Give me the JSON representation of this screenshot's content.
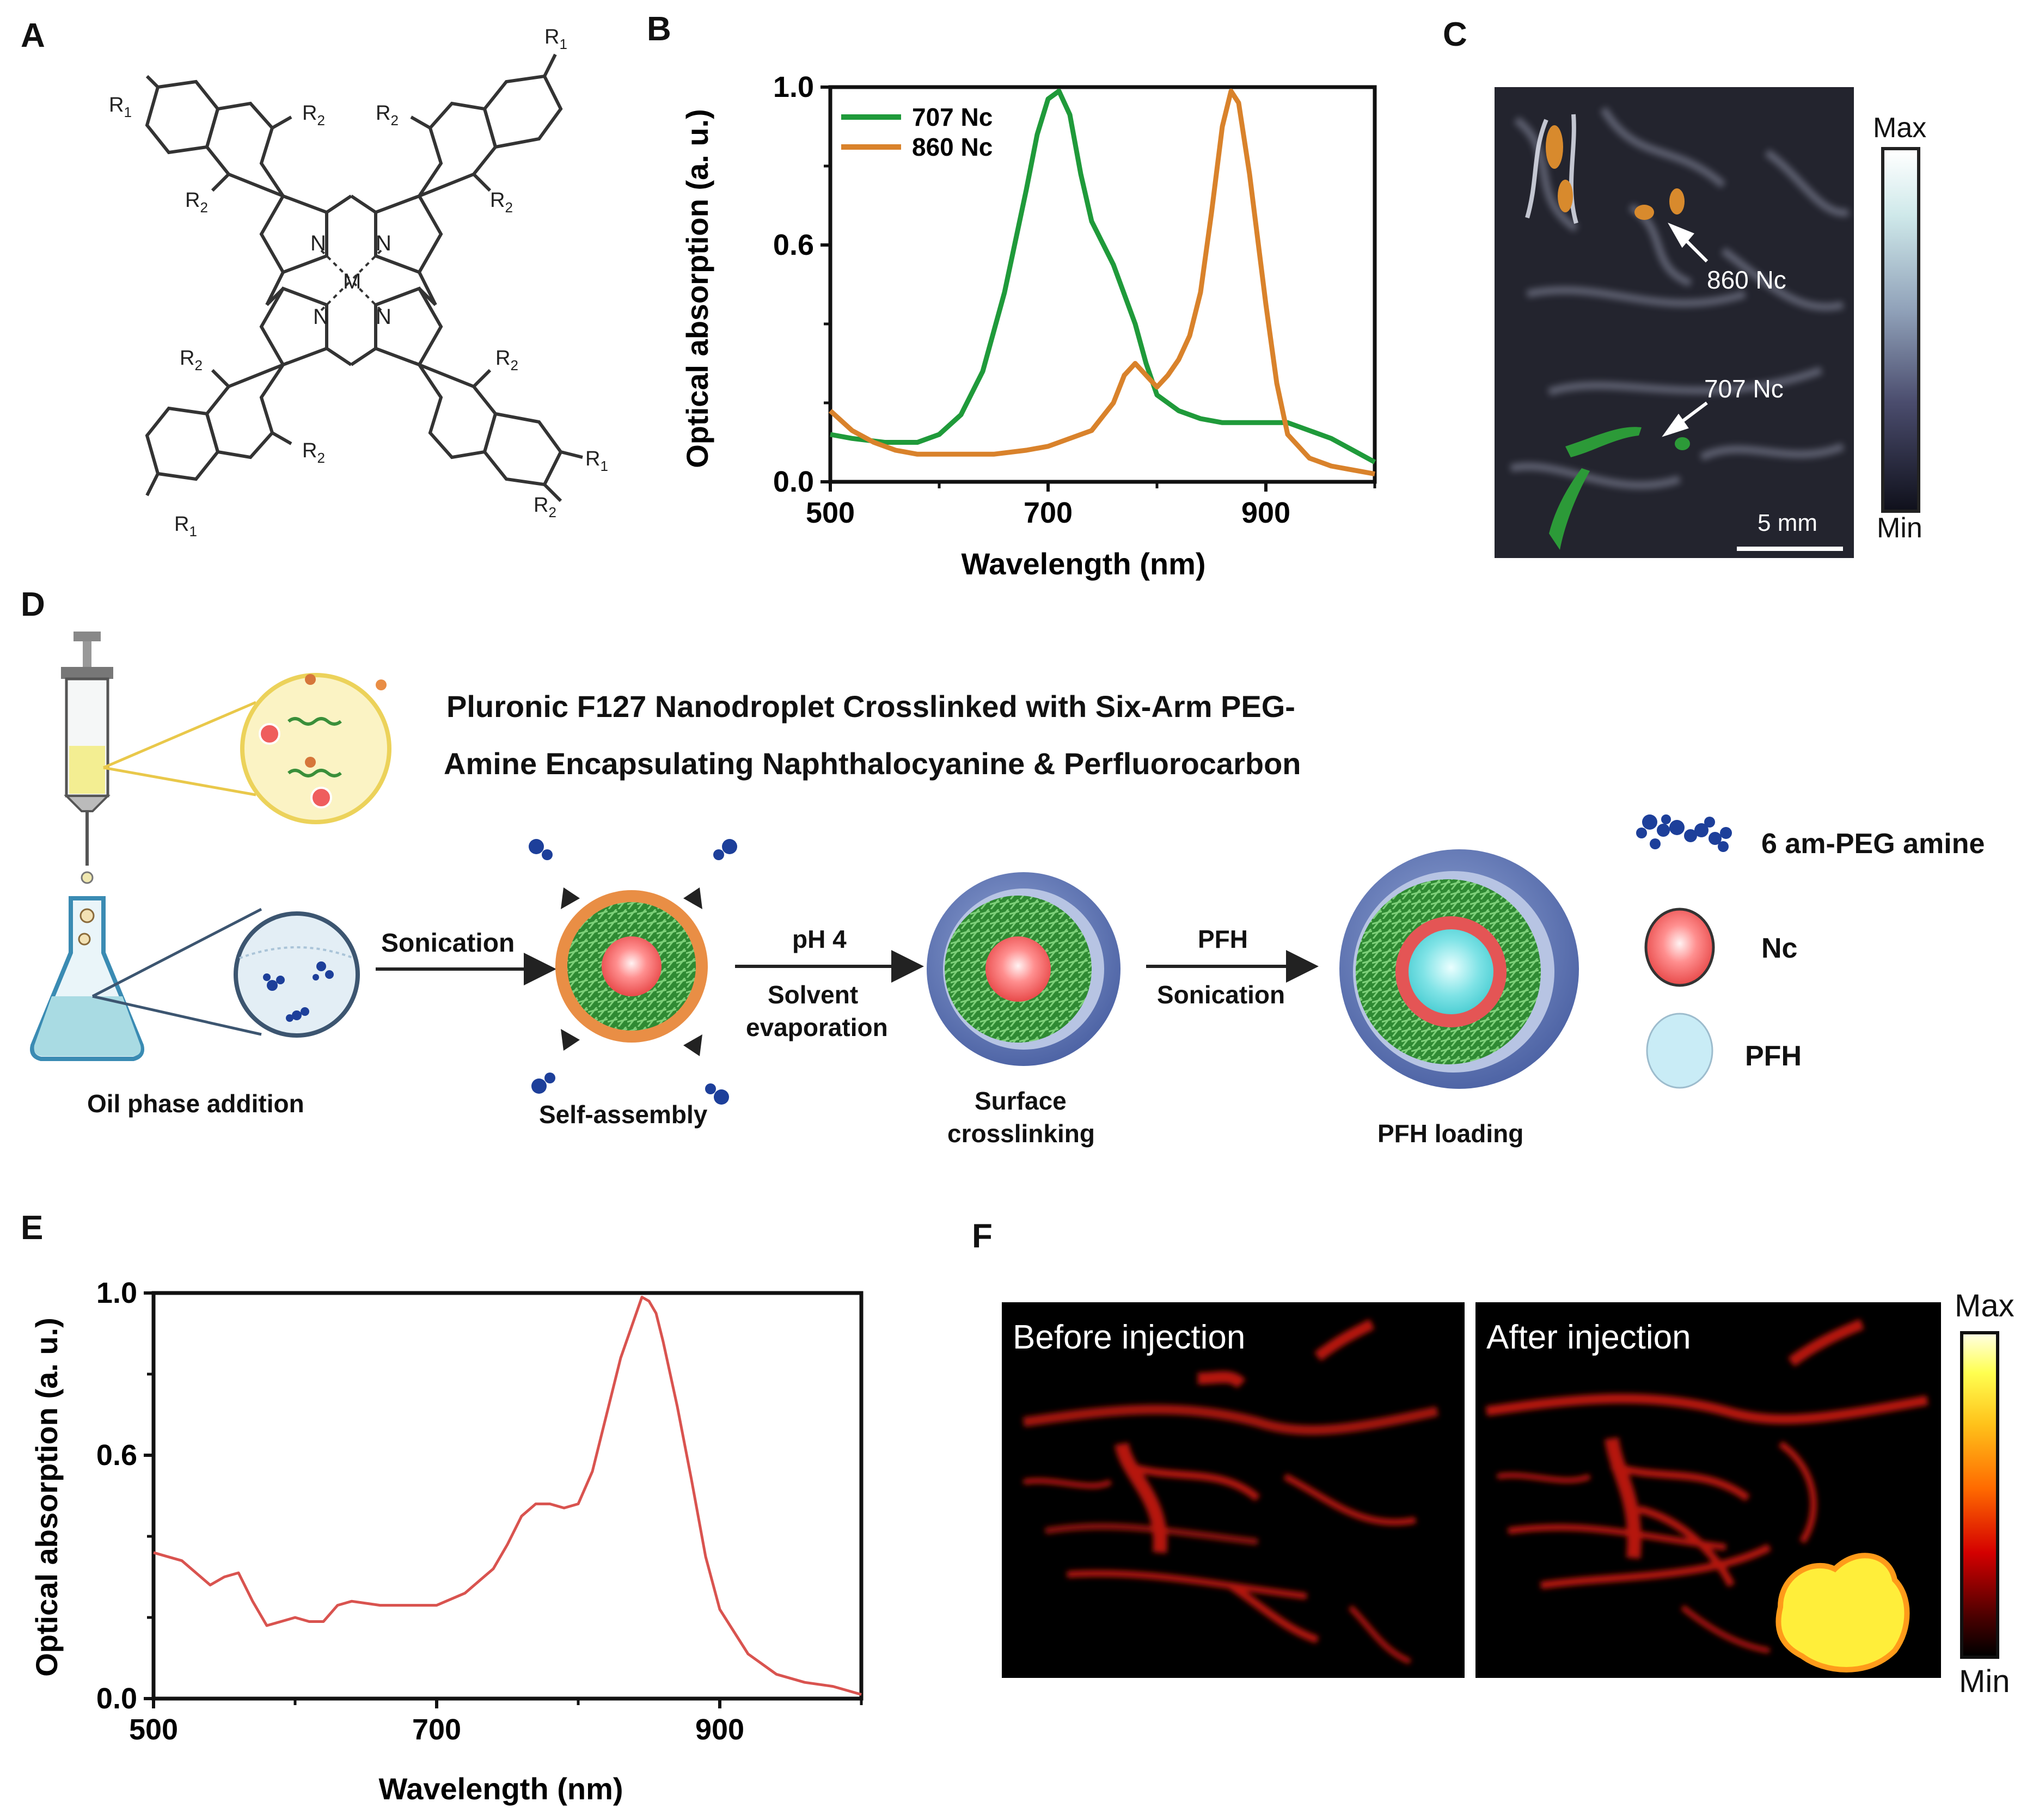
{
  "panels": {
    "A": "A",
    "B": "B",
    "C": "C",
    "D": "D",
    "E": "E",
    "F": "F"
  },
  "panelA": {
    "atoms": {
      "M": "M",
      "N": "N",
      "R1": "R",
      "R1_sub": "1",
      "R2": "R",
      "R2_sub": "2"
    }
  },
  "chart_data": [
    {
      "type": "line",
      "panel": "B",
      "xlabel": "Wavelength (nm)",
      "ylabel": "Optical absorption (a. u.)",
      "xlim": [
        500,
        1000
      ],
      "ylim": [
        0,
        1.0
      ],
      "xticks": [
        500,
        700,
        900
      ],
      "xticklabels": [
        "500",
        "700",
        "900"
      ],
      "yticks": [
        0.0,
        0.6,
        1.0
      ],
      "yticklabels": [
        "0.0",
        "0.6",
        "1.0"
      ],
      "legend": "top-left",
      "series": [
        {
          "name": "707 Nc",
          "color": "#1f9a3a",
          "x": [
            500,
            520,
            550,
            580,
            600,
            620,
            640,
            660,
            680,
            690,
            700,
            710,
            720,
            730,
            740,
            760,
            780,
            790,
            800,
            820,
            840,
            860,
            880,
            900,
            920,
            940,
            960,
            980,
            1000
          ],
          "y": [
            0.12,
            0.11,
            0.1,
            0.1,
            0.12,
            0.17,
            0.28,
            0.48,
            0.74,
            0.88,
            0.97,
            0.99,
            0.93,
            0.78,
            0.66,
            0.55,
            0.4,
            0.3,
            0.22,
            0.18,
            0.16,
            0.15,
            0.15,
            0.15,
            0.15,
            0.13,
            0.11,
            0.08,
            0.05
          ]
        },
        {
          "name": "860 Nc",
          "color": "#d9822b",
          "x": [
            500,
            520,
            540,
            560,
            580,
            600,
            620,
            650,
            680,
            700,
            720,
            740,
            760,
            770,
            780,
            790,
            800,
            810,
            820,
            830,
            840,
            850,
            860,
            868,
            875,
            885,
            900,
            910,
            920,
            940,
            960,
            980,
            1000
          ],
          "y": [
            0.18,
            0.13,
            0.1,
            0.08,
            0.07,
            0.07,
            0.07,
            0.07,
            0.08,
            0.09,
            0.11,
            0.13,
            0.2,
            0.27,
            0.3,
            0.27,
            0.24,
            0.27,
            0.31,
            0.37,
            0.48,
            0.68,
            0.9,
            0.99,
            0.96,
            0.78,
            0.45,
            0.25,
            0.12,
            0.06,
            0.04,
            0.03,
            0.02
          ]
        }
      ]
    },
    {
      "type": "line",
      "panel": "E",
      "xlabel": "Wavelength (nm)",
      "ylabel": "Optical absorption (a. u.)",
      "xlim": [
        500,
        1000
      ],
      "ylim": [
        0,
        1.0
      ],
      "xticks": [
        500,
        700,
        900
      ],
      "xticklabels": [
        "500",
        "700",
        "900"
      ],
      "yticks": [
        0.0,
        0.6,
        1.0
      ],
      "yticklabels": [
        "0.0",
        "0.6",
        "1.0"
      ],
      "series": [
        {
          "color": "#d9534f",
          "x": [
            500,
            510,
            520,
            530,
            540,
            550,
            560,
            570,
            580,
            590,
            600,
            610,
            620,
            630,
            640,
            660,
            680,
            700,
            720,
            740,
            750,
            760,
            770,
            780,
            790,
            800,
            810,
            820,
            830,
            840,
            845,
            850,
            855,
            860,
            870,
            880,
            890,
            900,
            920,
            940,
            960,
            980,
            1000
          ],
          "y": [
            0.36,
            0.35,
            0.34,
            0.31,
            0.28,
            0.3,
            0.31,
            0.24,
            0.18,
            0.19,
            0.2,
            0.19,
            0.19,
            0.23,
            0.24,
            0.23,
            0.23,
            0.23,
            0.26,
            0.32,
            0.38,
            0.45,
            0.48,
            0.48,
            0.47,
            0.48,
            0.56,
            0.7,
            0.84,
            0.94,
            0.99,
            0.98,
            0.95,
            0.88,
            0.72,
            0.54,
            0.35,
            0.22,
            0.11,
            0.06,
            0.04,
            0.03,
            0.01
          ]
        }
      ]
    }
  ],
  "panelC": {
    "colorbar_max": "Max",
    "colorbar_min": "Min",
    "label_860": "860 Nc",
    "label_707": "707 Nc",
    "scale_bar": "5 mm"
  },
  "panelD": {
    "title_line1": "Pluronic F127 Nanodroplet Crosslinked with Six-Arm PEG-",
    "title_line2": "Amine Encapsulating Naphthalocyanine & Perfluorocarbon",
    "step1_label": "Oil phase addition",
    "arrow1_label": "Sonication",
    "step2_label": "Self-assembly",
    "arrow2_label_top": "pH 4",
    "arrow2_label_bottom1": "Solvent",
    "arrow2_label_bottom2": "evaporation",
    "step3_label1": "Surface",
    "step3_label2": "crosslinking",
    "arrow3_label_top": "PFH",
    "arrow3_label_bottom": "Sonication",
    "step4_label": "PFH loading",
    "legend_peg": "6 am-PEG amine",
    "legend_nc": "Nc",
    "legend_pfh": "PFH"
  },
  "panelF": {
    "before_label": "Before injection",
    "after_label": "After injection",
    "colorbar_max": "Max",
    "colorbar_min": "Min"
  }
}
